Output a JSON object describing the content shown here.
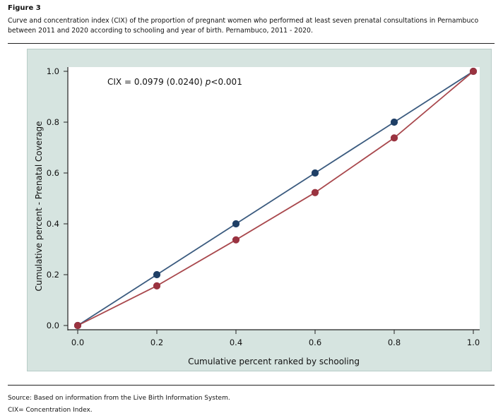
{
  "figure_label": "Figure 3",
  "caption": "Curve and concentration index (CIX) of the proportion of pregnant women who performed at least seven prenatal consultations in Pernambuco between 2011 and 2020 according to schooling and year of birth. Pernambuco, 2011 - 2020.",
  "footnotes": [
    "Source: Based on information from the Live Birth Information System.",
    "CIX= Concentration Index."
  ],
  "chart_data": {
    "type": "line",
    "title": "",
    "xlabel": "Cumulative percent ranked by schooling",
    "ylabel": "Cumulative percent - Prenatal Coverage",
    "xlim": [
      0,
      1
    ],
    "ylim": [
      0,
      1
    ],
    "xticks": [
      "0.0",
      "0.2",
      "0.4",
      "0.6",
      "0.8",
      "1.0"
    ],
    "yticks": [
      "0.0",
      "0.2",
      "0.4",
      "0.6",
      "0.8",
      "1.0"
    ],
    "x": [
      0,
      0.2,
      0.4,
      0.6,
      0.8,
      1.0
    ],
    "series": [
      {
        "values": [
          0,
          0.2,
          0.4,
          0.6,
          0.8,
          1.0
        ],
        "color": "#3b5b7f",
        "marker": "#1f3f66"
      },
      {
        "values": [
          0,
          0.156,
          0.337,
          0.523,
          0.738,
          1.0
        ],
        "color": "#a9484d",
        "marker": "#9a3340"
      }
    ],
    "annotation": {
      "prefix": "CIX = 0.0979 (0.0240) ",
      "italic": "p",
      "suffix": "<0.001"
    },
    "grid": false,
    "plot_background": "#ffffff",
    "outer_background": "#d6e4e0"
  }
}
